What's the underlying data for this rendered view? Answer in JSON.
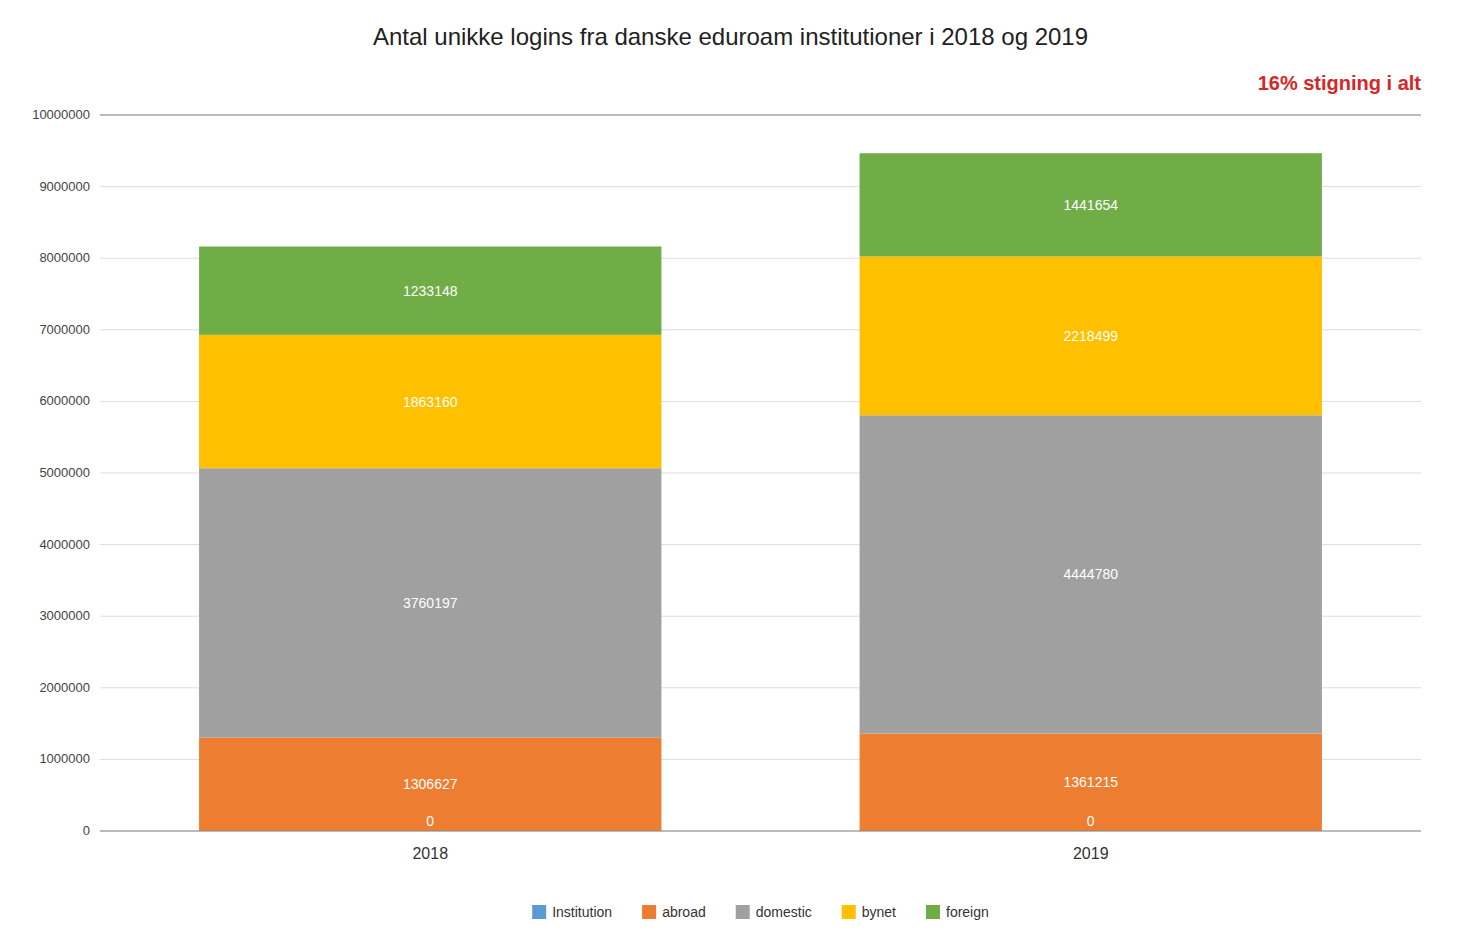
{
  "chart_data": {
    "type": "bar",
    "stacked": true,
    "title": "Antal unikke logins fra danske eduroam institutioner i 2018 og 2019",
    "annotation": "16% stigning i alt",
    "categories": [
      "2018",
      "2019"
    ],
    "series": [
      {
        "name": "Institution",
        "color": "#5b9bd5",
        "values": [
          0,
          0
        ]
      },
      {
        "name": "abroad",
        "color": "#ed7d31",
        "values": [
          1306627,
          1361215
        ]
      },
      {
        "name": "domestic",
        "color": "#a0a0a0",
        "values": [
          3760197,
          4444780
        ]
      },
      {
        "name": "bynet",
        "color": "#ffc000",
        "values": [
          1863160,
          2218499
        ]
      },
      {
        "name": "foreign",
        "color": "#70ad47",
        "values": [
          1233148,
          1441654
        ]
      }
    ],
    "ylim": [
      0,
      10000000
    ],
    "yticks": [
      0,
      1000000,
      2000000,
      3000000,
      4000000,
      5000000,
      6000000,
      7000000,
      8000000,
      9000000,
      10000000
    ],
    "grid": true,
    "legend": "bottom",
    "data_labels": true
  }
}
